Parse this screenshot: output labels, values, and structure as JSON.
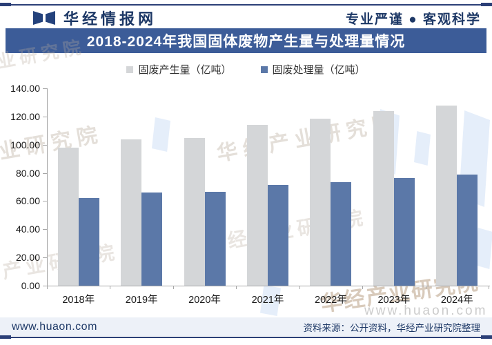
{
  "header": {
    "brand": "华经情报网",
    "tagline": "专业严谨 ● 客观科学"
  },
  "title": "2018-2024年我国固体废物产生量与处理量情况",
  "chart_data": {
    "type": "bar",
    "categories": [
      "2018年",
      "2019年",
      "2020年",
      "2021年",
      "2022年",
      "2023年",
      "2024年"
    ],
    "series": [
      {
        "name": "固废产生量（亿吨）",
        "color": "#d4d6d8",
        "values": [
          97.7,
          103.7,
          105.0,
          113.9,
          118.4,
          124.0,
          127.6
        ]
      },
      {
        "name": "固废处理量（亿吨）",
        "color": "#5b78a8",
        "values": [
          62.0,
          66.0,
          66.6,
          71.6,
          73.5,
          76.5,
          78.8
        ]
      }
    ],
    "ylim": [
      0,
      140
    ],
    "y_ticks": [
      "140.00",
      "120.00",
      "100.00",
      "80.00",
      "60.00",
      "40.00",
      "20.00",
      "0.00"
    ],
    "grid": false,
    "legend_position": "top"
  },
  "watermark": {
    "org": "华经产业研究院",
    "site": "www.huaon.com"
  },
  "footer": {
    "site": "www.huaon.com",
    "source": "资料来源：公开资料，华经产业研究院整理"
  },
  "colors": {
    "accent_navy": "#2b3f77",
    "title_bar": "#3c5c98",
    "bar_gray": "#d4d6d8",
    "bar_blue": "#5b78a8",
    "footer_band": "#edf1f8"
  }
}
